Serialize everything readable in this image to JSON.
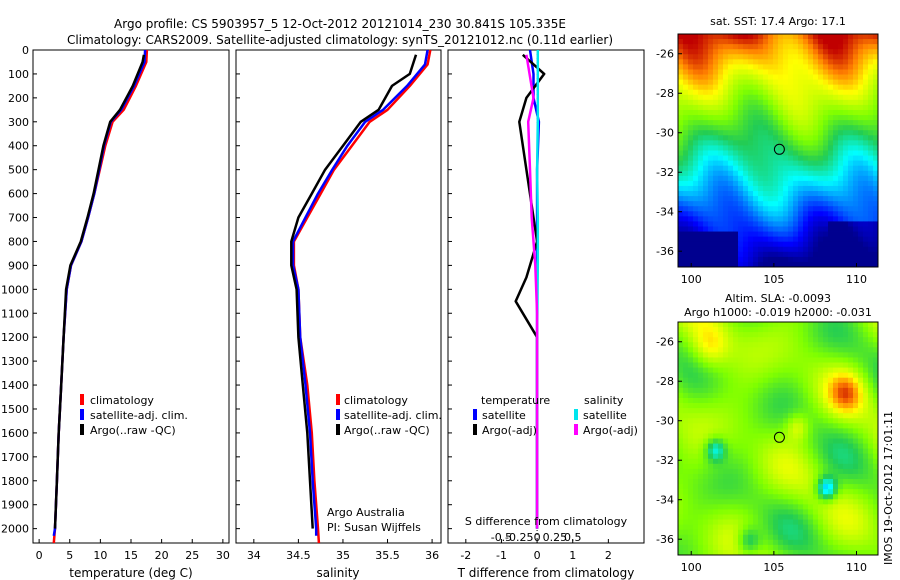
{
  "header": {
    "title_line1": "Argo profile: CS 5903957_5 12-Oct-2012 20121014_230 30.841S 105.335E",
    "title_line2": "Climatology: CARS2009. Satellite-adjusted climatology: synTS_20121012.nc (0.11d earlier)"
  },
  "colors": {
    "climatology": "#ff0000",
    "satellite": "#0000ff",
    "argo": "#000000",
    "salinity_satellite": "#00e5ee",
    "salinity_argo": "#ff00ff"
  },
  "chart_data": [
    {
      "type": "line",
      "id": "temperature",
      "xlabel": "temperature (deg C)",
      "xlim": [
        -1,
        31
      ],
      "xticks": [
        0,
        5,
        10,
        15,
        20,
        25,
        30
      ],
      "ylim": [
        2060,
        0
      ],
      "yticks": [
        0,
        100,
        200,
        300,
        400,
        500,
        600,
        700,
        800,
        900,
        1000,
        1100,
        1200,
        1300,
        1400,
        1500,
        1600,
        1700,
        1800,
        1900,
        2000
      ],
      "legend": [
        "climatology",
        "satellite-adj. clim.",
        "Argo(..raw -QC)"
      ],
      "series": [
        {
          "name": "climatology",
          "color": "#ff0000",
          "x": [
            17.6,
            17.5,
            15.8,
            13.8,
            12.0,
            10.8,
            9.9,
            9.0,
            8.0,
            6.9,
            5.2,
            4.5,
            4.0,
            3.6,
            3.2,
            2.9,
            2.6,
            2.4
          ],
          "y": [
            0,
            50,
            150,
            250,
            300,
            400,
            500,
            600,
            700,
            800,
            900,
            1000,
            1200,
            1400,
            1600,
            1800,
            2000,
            2060
          ]
        },
        {
          "name": "satellite-adj. clim.",
          "color": "#0000ff",
          "x": [
            17.3,
            17.2,
            15.5,
            13.4,
            11.7,
            10.6,
            9.8,
            9.0,
            8.0,
            6.9,
            5.2,
            4.5,
            4.0,
            3.6,
            3.2,
            2.9,
            2.6,
            2.4
          ],
          "y": [
            0,
            50,
            150,
            250,
            300,
            400,
            500,
            600,
            700,
            800,
            900,
            1000,
            1200,
            1400,
            1600,
            1800,
            2000,
            2030
          ]
        },
        {
          "name": "Argo(..raw -QC)",
          "color": "#000000",
          "x": [
            17.1,
            16.9,
            15.3,
            13.2,
            11.6,
            10.5,
            9.7,
            8.9,
            7.9,
            6.8,
            5.1,
            4.4,
            4.0,
            3.6,
            3.2,
            2.9,
            2.6
          ],
          "y": [
            20,
            50,
            150,
            250,
            300,
            400,
            500,
            600,
            700,
            800,
            900,
            1000,
            1200,
            1400,
            1600,
            1800,
            2000
          ]
        }
      ]
    },
    {
      "type": "line",
      "id": "salinity",
      "xlabel": "salinity",
      "xlim": [
        33.8,
        36.1
      ],
      "xticks": [
        34,
        34.5,
        35,
        35.5,
        36
      ],
      "xtick_labels": [
        "34",
        "34.5",
        "35",
        "35.5",
        "36"
      ],
      "ylim": [
        2060,
        0
      ],
      "legend": [
        "climatology",
        "satellite-adj. clim.",
        "Argo(..raw -QC)"
      ],
      "annotation": [
        "Argo Australia",
        "PI: Susan Wijffels"
      ],
      "series": [
        {
          "name": "climatology",
          "color": "#ff0000",
          "x": [
            35.98,
            35.95,
            35.75,
            35.5,
            35.3,
            35.1,
            34.9,
            34.75,
            34.6,
            34.45,
            34.45,
            34.5,
            34.52,
            34.6,
            34.65,
            34.68,
            34.72,
            34.73
          ],
          "y": [
            0,
            60,
            150,
            250,
            300,
            400,
            500,
            600,
            700,
            800,
            900,
            1000,
            1200,
            1400,
            1600,
            1800,
            2000,
            2060
          ]
        },
        {
          "name": "satellite-adj. clim.",
          "color": "#0000ff",
          "x": [
            35.95,
            35.92,
            35.72,
            35.45,
            35.25,
            35.05,
            34.88,
            34.72,
            34.58,
            34.44,
            34.44,
            34.5,
            34.52,
            34.58,
            34.63,
            34.66,
            34.7,
            34.7
          ],
          "y": [
            0,
            60,
            150,
            250,
            300,
            400,
            500,
            600,
            700,
            800,
            900,
            1000,
            1200,
            1400,
            1600,
            1800,
            2000,
            2030
          ]
        },
        {
          "name": "Argo(..raw -QC)",
          "color": "#000000",
          "x": [
            35.82,
            35.75,
            35.55,
            35.4,
            35.2,
            35.0,
            34.8,
            34.65,
            34.5,
            34.42,
            34.42,
            34.48,
            34.5,
            34.55,
            34.6,
            34.63,
            34.66
          ],
          "y": [
            20,
            100,
            150,
            250,
            300,
            400,
            500,
            600,
            700,
            800,
            900,
            1000,
            1200,
            1400,
            1600,
            1800,
            2000
          ]
        }
      ]
    },
    {
      "type": "line",
      "id": "difference",
      "xlabel_top": "S difference from climatology",
      "xlabel": "T difference from climatology",
      "xlim": [
        -2.5,
        3.0
      ],
      "xticks": [
        -2,
        -1,
        0,
        1,
        2
      ],
      "xtick_labels": [
        "-2",
        "-1",
        "0",
        "1",
        "2"
      ],
      "top_tick_values": [
        -0.5,
        -0.25,
        0,
        0.25,
        0.5
      ],
      "top_tick_labels": [
        "-0.5",
        "-0.25",
        "0",
        "0.25",
        "0.5"
      ],
      "ylim": [
        2060,
        0
      ],
      "legend": {
        "temperature": "temperature",
        "salinity": "salinity",
        "t_satellite": "satellite",
        "t_argo": "Argo(-adj)",
        "s_satellite": "satellite",
        "s_argo": "Argo(-adj)"
      },
      "series": [
        {
          "name": "temperature satellite",
          "color": "#0000ff",
          "x": [
            -0.2,
            -0.1,
            -0.1,
            0.05,
            0.0,
            0.0,
            0.0,
            0.0,
            0.0,
            0.0
          ],
          "y": [
            0,
            100,
            200,
            300,
            500,
            800,
            1100,
            1400,
            1700,
            2000
          ]
        },
        {
          "name": "temperature Argo(-adj)",
          "color": "#000000",
          "x": [
            -0.4,
            0.2,
            -0.3,
            -0.5,
            -0.3,
            -0.1,
            0.0,
            -0.2,
            -0.3,
            -0.6,
            0.0,
            0.0,
            0.0
          ],
          "y": [
            20,
            100,
            200,
            300,
            500,
            700,
            800,
            900,
            950,
            1050,
            1200,
            1600,
            2000
          ]
        },
        {
          "name": "salinity satellite",
          "color": "#00e5ee",
          "x": [
            0.02,
            0.02,
            0.0,
            0.02,
            0.02,
            0.0,
            0.0,
            0.0,
            0.0
          ],
          "y": [
            0,
            300,
            500,
            700,
            900,
            1200,
            1500,
            1800,
            2000
          ]
        },
        {
          "name": "salinity Argo(-adj)",
          "color": "#ff00ff",
          "x": [
            -0.3,
            -0.1,
            -0.25,
            -0.2,
            -0.15,
            -0.05,
            0.0,
            0.0,
            0.0,
            0.0
          ],
          "y": [
            20,
            200,
            300,
            500,
            700,
            900,
            1100,
            1300,
            1600,
            2000
          ]
        }
      ]
    },
    {
      "type": "heatmap",
      "id": "sst_map",
      "title": "sat. SST: 17.4 Argo: 17.1",
      "xlim": [
        99.2,
        111.3
      ],
      "ylim": [
        -36.8,
        -25.0
      ],
      "xticks": [
        100,
        105,
        110
      ],
      "yticks": [
        -26,
        -28,
        -30,
        -32,
        -34,
        -36
      ],
      "marker": {
        "lon": 105.335,
        "lat": -30.841
      }
    },
    {
      "type": "heatmap",
      "id": "sla_map",
      "title_line1": "Altim. SLA: -0.0093",
      "title_line2": "Argo h1000: -0.019 h2000: -0.031",
      "xlim": [
        99.2,
        111.3
      ],
      "ylim": [
        -36.8,
        -25.0
      ],
      "xticks": [
        100,
        105,
        110
      ],
      "yticks": [
        -26,
        -28,
        -30,
        -32,
        -34,
        -36
      ],
      "marker": {
        "lon": 105.335,
        "lat": -30.841
      }
    }
  ],
  "side_label": "IMOS 19-Oct-2012 17:01:11"
}
